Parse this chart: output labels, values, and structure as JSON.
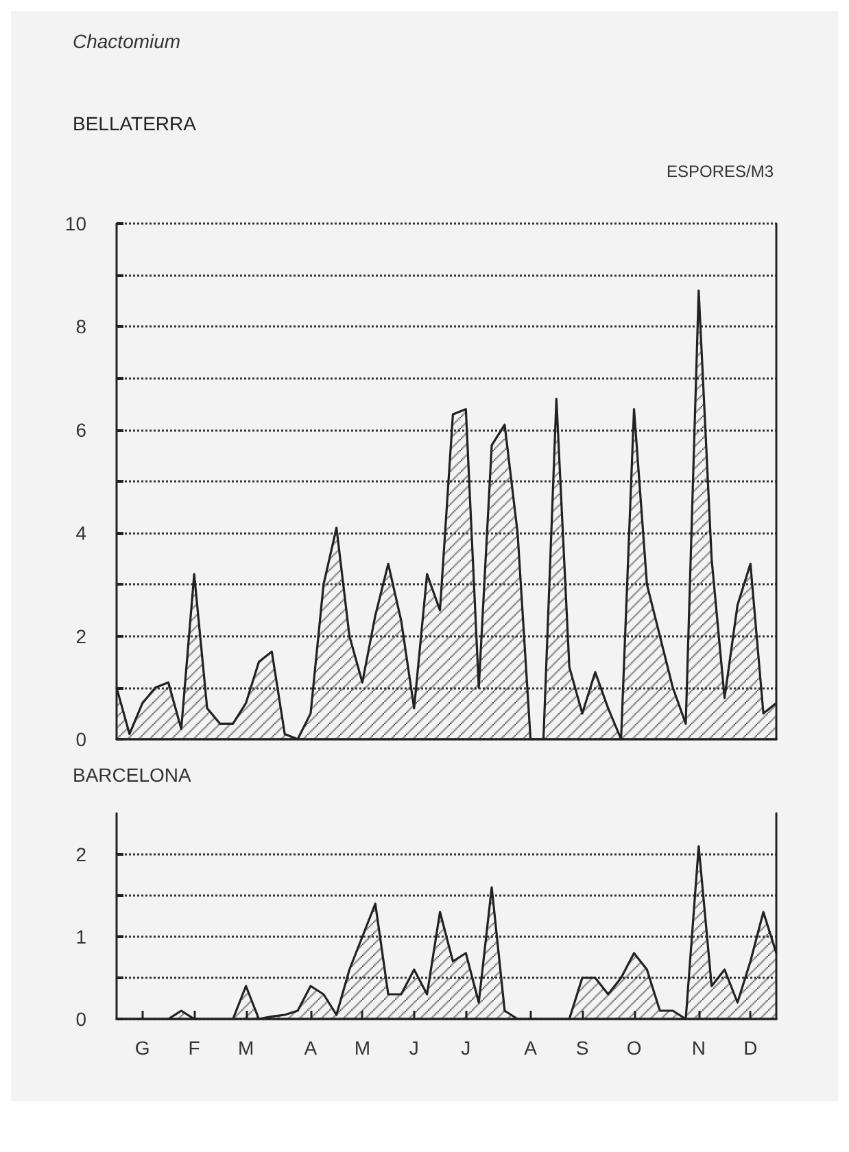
{
  "chart_data": [
    {
      "type": "area",
      "title": "Chactomium",
      "subtitle": "BELLATERRA",
      "ylabel": "ESPORES/M3",
      "grid": "y",
      "tick_labels": "y",
      "ylim": [
        0,
        10
      ],
      "yticks": [
        0,
        {
          "value": 1,
          "label": null
        },
        2,
        {
          "value": 3,
          "label": null
        },
        4,
        {
          "value": 5,
          "label": null
        },
        6,
        {
          "value": 7,
          "label": null
        },
        8,
        {
          "value": 9,
          "label": null
        },
        10
      ],
      "categories": [
        null,
        null,
        null,
        null,
        null,
        null,
        null,
        null,
        null,
        null,
        null,
        null,
        null,
        null,
        null,
        null,
        null,
        null,
        null,
        null,
        null,
        null,
        null,
        null,
        null,
        null,
        null,
        null,
        null,
        null,
        null,
        null,
        null,
        null,
        null,
        null,
        null,
        null,
        null,
        null,
        null,
        null,
        null,
        null,
        null,
        null,
        null,
        null,
        null,
        null,
        null,
        null
      ],
      "series": [
        {
          "color": "#222222",
          "values": [
            1.0,
            0.1,
            0.7,
            1.0,
            1.1,
            0.2,
            3.2,
            0.6,
            0.3,
            0.3,
            0.7,
            1.5,
            1.7,
            0.1,
            0.0,
            0.5,
            3.0,
            4.1,
            2.0,
            1.1,
            2.4,
            3.4,
            2.3,
            0.6,
            3.2,
            2.5,
            6.3,
            6.4,
            1.0,
            5.7,
            6.1,
            4.0,
            0.0,
            0.0,
            6.6,
            1.4,
            0.5,
            1.3,
            0.6,
            0.0,
            6.4,
            3.0,
            2.0,
            1.0,
            0.3,
            8.7,
            3.5,
            0.8,
            2.6,
            3.4,
            0.5,
            0.7
          ]
        }
      ]
    },
    {
      "type": "area",
      "title": "BARCELONA",
      "grid": "y",
      "ylim": [
        0,
        2.5
      ],
      "yticks": [
        0,
        {
          "value": 0.5,
          "label": null
        },
        1,
        {
          "value": 1.5,
          "label": null
        },
        2
      ],
      "categories": [
        null,
        null,
        "G",
        null,
        null,
        null,
        "F",
        null,
        null,
        null,
        "M",
        null,
        null,
        null,
        null,
        "A",
        null,
        null,
        null,
        "M",
        null,
        null,
        null,
        "J",
        null,
        null,
        null,
        "J",
        null,
        null,
        null,
        null,
        "A",
        null,
        null,
        null,
        "S",
        null,
        null,
        null,
        "O",
        null,
        null,
        null,
        null,
        "N",
        null,
        null,
        null,
        "D",
        null,
        null
      ],
      "series": [
        {
          "color": "#222222",
          "values": [
            0,
            0,
            0,
            0,
            0,
            0.1,
            0,
            0,
            0,
            0,
            0.4,
            0,
            0.03,
            0.05,
            0.1,
            0.4,
            0.3,
            0.05,
            0.6,
            1.0,
            1.4,
            0.3,
            0.3,
            0.6,
            0.3,
            1.3,
            0.7,
            0.8,
            0.2,
            1.6,
            0.1,
            0,
            0,
            0,
            0,
            0,
            0.5,
            0.5,
            0.3,
            0.5,
            0.8,
            0.6,
            0.1,
            0.1,
            0,
            2.1,
            0.4,
            0.6,
            0.2,
            0.7,
            1.3,
            0.8
          ]
        }
      ]
    }
  ]
}
